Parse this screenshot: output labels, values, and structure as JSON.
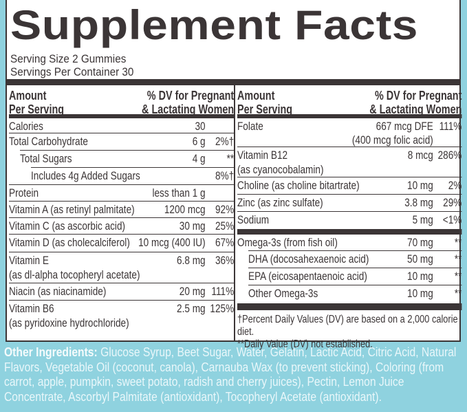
{
  "header": {
    "title": "Supplement Facts",
    "serving_size": "Serving Size 2 Gummies",
    "servings_per_container": "Servings Per Container 30"
  },
  "columns": [
    {
      "amount_heading": [
        "Amount",
        "Per Serving"
      ],
      "dv_heading": [
        "% DV for Pregnant",
        "& Lactating Women"
      ],
      "rows": [
        {
          "name": "Calories",
          "amount": "30"
        },
        {
          "name": "Total Carbohydrate",
          "amount": "6 g",
          "dv": "2%†"
        },
        {
          "name": "Total Sugars",
          "amount": "4 g",
          "dv": "**"
        },
        {
          "name": "Includes 4g Added Sugars",
          "dv": "8%†"
        },
        {
          "name": "Protein",
          "amount": "less than 1 g"
        },
        {
          "name": "Vitamin A (as retinyl palmitate)",
          "amount": "1200 mcg",
          "dv": "92%"
        },
        {
          "name": "Vitamin C (as ascorbic acid)",
          "amount": "30 mg",
          "dv": "25%"
        },
        {
          "name": "Vitamin D (as cholecalciferol)",
          "amount": "10 mcg (400 IU)",
          "dv": "67%"
        },
        {
          "name": "Vitamin E",
          "detail": "(as dl-alpha tocopheryl acetate)",
          "amount": "6.8 mg",
          "dv": "36%"
        },
        {
          "name": "Niacin (as niacinamide)",
          "amount": "20 mg",
          "dv": "111%"
        },
        {
          "name": "Vitamin B6",
          "detail": "(as pyridoxine hydrochloride)",
          "amount": "2.5 mg",
          "dv": "125%"
        }
      ]
    },
    {
      "amount_heading": [
        "Amount",
        "Per Serving"
      ],
      "dv_heading": [
        "% DV for Pregnant",
        "& Lactating Women"
      ],
      "rows": [
        {
          "name": "Folate",
          "amount": "667 mcg DFE",
          "amount_detail": "(400 mcg folic acid)",
          "dv": "111%"
        },
        {
          "name": "Vitamin B12",
          "detail": "(as cyanocobalamin)",
          "amount": "8 mcg",
          "dv": "286%"
        },
        {
          "name": "Choline (as choline bitartrate)",
          "amount": "10 mg",
          "dv": "2%"
        },
        {
          "name": "Zinc (as zinc sulfate)",
          "amount": "3.8 mg",
          "dv": "29%"
        },
        {
          "name": "Sodium",
          "amount": "5 mg",
          "dv": "<1%"
        },
        {
          "name": "Omega-3s (from fish oil)",
          "amount": "70 mg",
          "dv": "**"
        },
        {
          "name": "DHA (docosahexaenoic acid)",
          "amount": "50 mg",
          "dv": "**"
        },
        {
          "name": "EPA (eicosapentaenoic acid)",
          "amount": "10 mg",
          "dv": "**"
        },
        {
          "name": "Other Omega-3s",
          "amount": "10 mg",
          "dv": "**"
        }
      ],
      "footnotes": [
        "†Percent Daily Values (DV) are based on a 2,000 calorie diet.",
        "**Daily Value (DV) not established."
      ]
    }
  ],
  "other_ingredients": {
    "label": "Other Ingredients:",
    "text": "Glucose Syrup, Beet Sugar, Water, Gelatin, Lactic Acid, Citric Acid, Natural Flavors, Vegetable Oil (coconut, canola), Carnauba Wax (to prevent sticking), Coloring (from carrot, apple, pumpkin, sweet potato, radish and cherry juices), Pectin, Lemon Juice Concentrate, Ascorbyl Palmitate (antioxidant), Tocopheryl Acetate (antioxidant)."
  }
}
